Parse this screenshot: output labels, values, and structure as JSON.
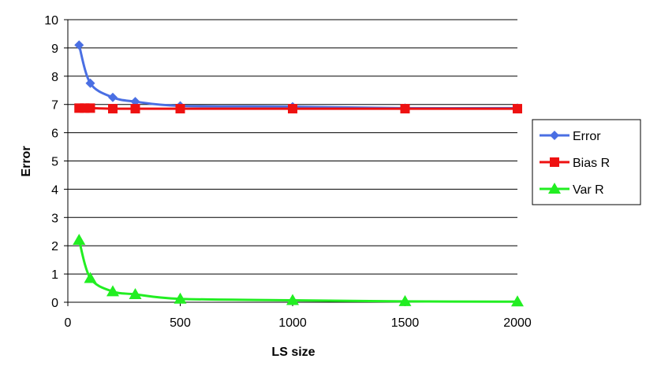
{
  "chart_data": {
    "type": "line",
    "title": "",
    "xlabel": "LS size",
    "ylabel": "Error",
    "xlim": [
      0,
      2000
    ],
    "ylim": [
      0,
      10
    ],
    "xticks": [
      0,
      500,
      1000,
      1500,
      2000
    ],
    "yticks": [
      0,
      1,
      2,
      3,
      4,
      5,
      6,
      7,
      8,
      9,
      10
    ],
    "grid": "horizontal",
    "legend_position": "right",
    "series": [
      {
        "name": "Error",
        "color": "#4a6fe3",
        "marker": "diamond",
        "x": [
          50,
          100,
          200,
          300,
          500,
          1000,
          1500,
          2000
        ],
        "y": [
          9.1,
          7.75,
          7.25,
          7.1,
          6.95,
          6.92,
          6.87,
          6.87
        ]
      },
      {
        "name": "Bias R",
        "color": "#ee1111",
        "marker": "square",
        "x": [
          50,
          75,
          100,
          200,
          300,
          500,
          1000,
          1500,
          2000
        ],
        "y": [
          6.87,
          6.87,
          6.87,
          6.85,
          6.85,
          6.85,
          6.85,
          6.85,
          6.85
        ]
      },
      {
        "name": "Var R",
        "color": "#22ee22",
        "marker": "triangle",
        "x": [
          50,
          100,
          200,
          300,
          500,
          1000,
          1500,
          2000
        ],
        "y": [
          2.2,
          0.85,
          0.38,
          0.28,
          0.12,
          0.07,
          0.03,
          0.02
        ]
      }
    ]
  }
}
